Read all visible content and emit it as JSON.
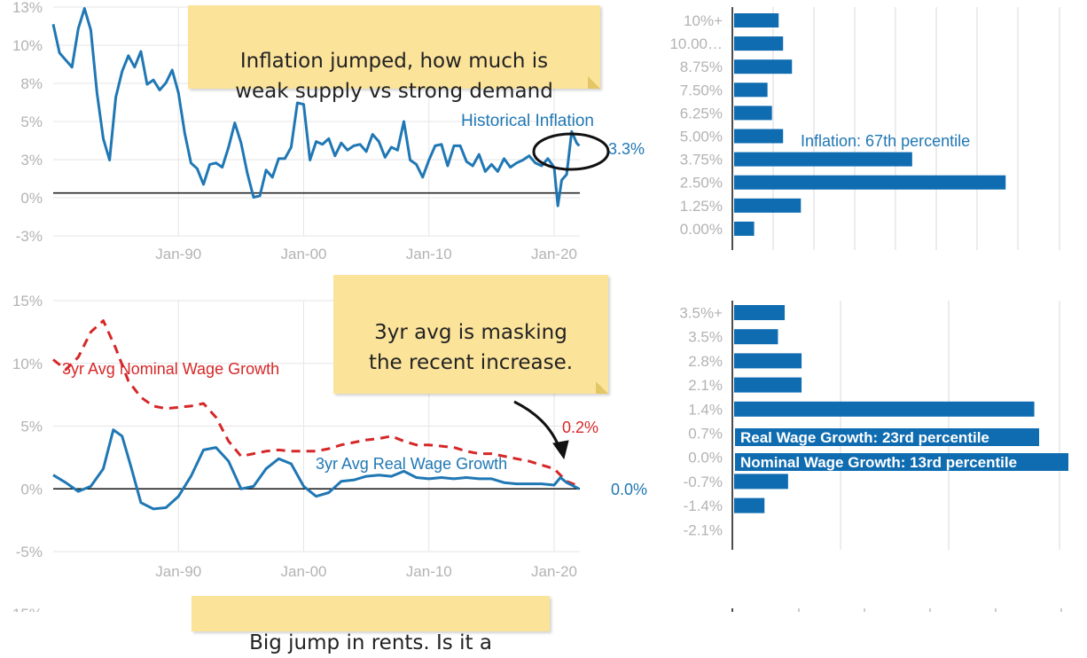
{
  "colors": {
    "blue": "#1f77b4",
    "red": "#d62728",
    "grid": "#e6e6e6",
    "note": "#fbe39a",
    "bar": "#0f6cb0"
  },
  "notes": {
    "inflation": "Inflation jumped, how much is\nweak supply vs strong demand",
    "wages": "3yr avg is masking\nthe recent increase.",
    "rents": "Big jump in rents. Is it a"
  },
  "chart_data": [
    {
      "type": "line",
      "y_ticks": [
        "13%",
        "10%",
        "8%",
        "5%",
        "3%",
        "0%",
        "-3%"
      ],
      "x_ticks": [
        "Jan-90",
        "Jan-00",
        "Jan-10",
        "Jan-20"
      ],
      "ylim": [
        -3,
        13
      ],
      "series": [
        {
          "name": "Historical Inflation",
          "end_label": "3.3%",
          "x": [
            1980,
            1980.5,
            1981,
            1981.5,
            1982,
            1982.5,
            1983,
            1983.5,
            1984,
            1984.5,
            1985,
            1985.5,
            1986,
            1986.5,
            1987,
            1987.5,
            1988,
            1988.5,
            1989,
            1989.5,
            1990,
            1990.5,
            1991,
            1991.5,
            1992,
            1992.5,
            1993,
            1993.5,
            1994,
            1994.5,
            1995,
            1995.5,
            1996,
            1996.5,
            1997,
            1997.5,
            1998,
            1998.5,
            1999,
            1999.5,
            2000,
            2000.5,
            2001,
            2001.5,
            2002,
            2002.5,
            2003,
            2003.5,
            2004,
            2004.5,
            2005,
            2005.5,
            2006,
            2006.5,
            2007,
            2007.5,
            2008,
            2008.5,
            2009,
            2009.5,
            2010,
            2010.5,
            2011,
            2011.5,
            2012,
            2012.5,
            2013,
            2013.5,
            2014,
            2014.5,
            2015,
            2015.5,
            2016,
            2016.5,
            2017,
            2017.5,
            2018,
            2018.5,
            2019,
            2019.5,
            2020,
            2020.3,
            2020.6,
            2021,
            2021.4,
            2021.8,
            2022
          ],
          "values": [
            11.8,
            9.8,
            9.3,
            8.8,
            11.5,
            12.9,
            11.4,
            7.0,
            3.8,
            2.3,
            6.7,
            8.5,
            9.6,
            8.8,
            9.9,
            7.6,
            7.9,
            7.2,
            7.7,
            8.6,
            7.0,
            4.2,
            2.1,
            1.7,
            0.6,
            2.0,
            2.1,
            1.8,
            3.2,
            4.9,
            3.5,
            1.4,
            -0.3,
            -0.2,
            1.6,
            1.1,
            2.4,
            2.4,
            3.2,
            6.3,
            6.2,
            2.3,
            3.6,
            3.4,
            3.8,
            2.6,
            3.5,
            3.0,
            3.3,
            3.4,
            2.9,
            4.1,
            3.6,
            2.5,
            3.2,
            3.0,
            5.0,
            2.3,
            2.0,
            1.1,
            2.3,
            3.3,
            3.4,
            1.9,
            3.3,
            3.3,
            2.2,
            1.9,
            2.7,
            1.5,
            2.0,
            1.5,
            2.4,
            1.8,
            2.1,
            2.3,
            2.6,
            2.1,
            1.9,
            2.4,
            1.8,
            -0.9,
            0.9,
            1.3,
            4.3,
            3.5,
            3.3
          ]
        }
      ]
    },
    {
      "type": "bar",
      "orientation": "horizontal",
      "categories": [
        "10%+",
        "10.00…",
        "8.75%",
        "7.50%",
        "6.25%",
        "5.00%",
        "3.75%",
        "2.50%",
        "1.25%",
        "0.00%"
      ],
      "values": [
        2,
        2.2,
        2.6,
        1.5,
        1.7,
        2.2,
        8.0,
        12.2,
        3.0,
        0.9
      ],
      "xlim": [
        0,
        14.7
      ],
      "annotation": "Inflation: 67th percentile"
    },
    {
      "type": "line",
      "y_ticks": [
        "15%",
        "10%",
        "5%",
        "0%",
        "-5%"
      ],
      "x_ticks": [
        "Jan-90",
        "Jan-00",
        "Jan-10",
        "Jan-20"
      ],
      "ylim": [
        -5,
        15
      ],
      "series": [
        {
          "name": "3yr Avg Nominal Wage Growth",
          "end_label": "0.2%",
          "style": "dashed",
          "x": [
            1980,
            1981,
            1982,
            1983,
            1984,
            1985,
            1986,
            1987,
            1988,
            1989,
            1990,
            1991,
            1992,
            1993,
            1994,
            1995,
            1996,
            1997,
            1998,
            1999,
            2000,
            2001,
            2002,
            2003,
            2004,
            2005,
            2006,
            2007,
            2008,
            2009,
            2010,
            2011,
            2012,
            2013,
            2014,
            2015,
            2016,
            2017,
            2018,
            2019,
            2020,
            2021,
            2022
          ],
          "values": [
            10.3,
            9.5,
            10.5,
            12.5,
            13.4,
            11.2,
            8.6,
            7.3,
            6.6,
            6.4,
            6.5,
            6.6,
            6.8,
            5.7,
            3.8,
            2.6,
            2.8,
            3.0,
            3.1,
            3.0,
            3.0,
            3.0,
            3.2,
            3.5,
            3.7,
            3.9,
            4.0,
            4.2,
            3.8,
            3.5,
            3.5,
            3.4,
            3.3,
            3.0,
            2.8,
            2.8,
            2.6,
            2.4,
            2.2,
            1.9,
            1.6,
            0.6,
            0.2
          ]
        },
        {
          "name": "3yr Avg Real Wage Growth",
          "end_label": "0.0%",
          "x": [
            1980,
            1981,
            1982,
            1983,
            1984,
            1984.8,
            1985.5,
            1986.2,
            1987,
            1988,
            1989,
            1990,
            1991,
            1992,
            1993,
            1994,
            1995,
            1996,
            1997,
            1998,
            1999,
            2000,
            2001,
            2002,
            2003,
            2004,
            2005,
            2006,
            2007,
            2008,
            2009,
            2010,
            2011,
            2012,
            2013,
            2014,
            2015,
            2016,
            2017,
            2018,
            2019,
            2020,
            2020.5,
            2021,
            2022
          ],
          "values": [
            1.1,
            0.5,
            -0.2,
            0.2,
            1.6,
            4.7,
            4.2,
            1.8,
            -1.1,
            -1.6,
            -1.5,
            -0.6,
            1.0,
            3.1,
            3.3,
            2.2,
            0.0,
            0.2,
            1.6,
            2.4,
            2.0,
            0.2,
            -0.6,
            -0.3,
            0.6,
            0.7,
            1.0,
            1.1,
            1.0,
            1.4,
            0.9,
            0.8,
            0.9,
            0.8,
            0.9,
            0.8,
            0.8,
            0.5,
            0.4,
            0.4,
            0.4,
            0.3,
            0.9,
            0.5,
            0.0
          ]
        }
      ]
    },
    {
      "type": "bar",
      "orientation": "horizontal",
      "categories": [
        "3.5%+",
        "3.5%",
        "2.8%",
        "2.1%",
        "1.4%",
        "0.7%",
        "0.0%",
        "-0.7%",
        "-1.4%",
        "-2.1%"
      ],
      "values": [
        1.5,
        1.3,
        2.0,
        2.0,
        8.9,
        0,
        0,
        1.6,
        0.9,
        0
      ],
      "xlim": [
        0,
        9.7
      ],
      "annotations": [
        "Real Wage Growth: 23rd percentile",
        "Nominal Wage Growth: 13rd percentile"
      ]
    }
  ]
}
